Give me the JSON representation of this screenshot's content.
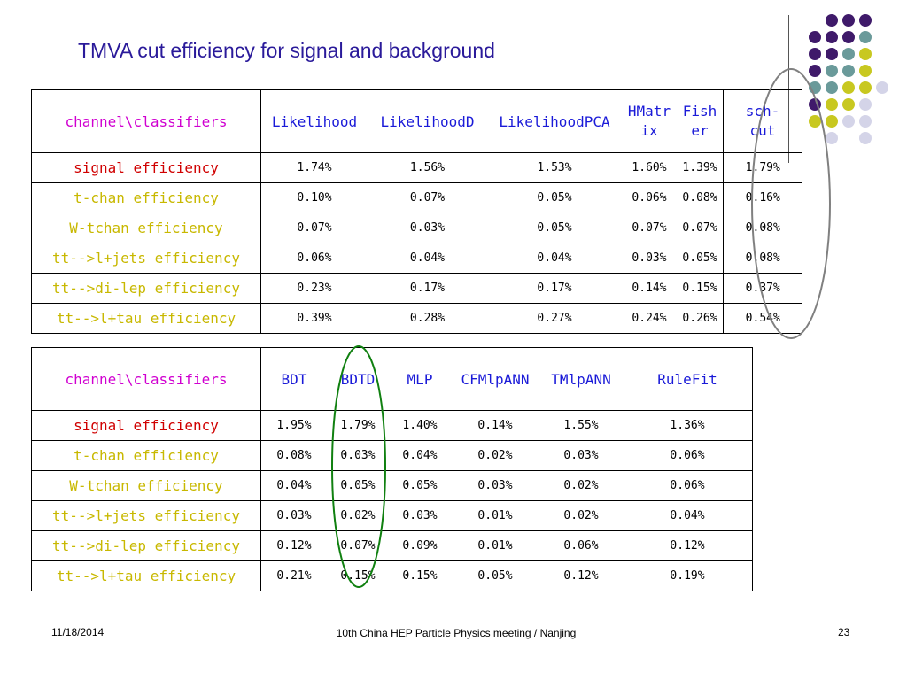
{
  "title": "TMVA cut efficiency for signal and background",
  "table1": {
    "corner": "channel\\classifiers",
    "headers": [
      "Likelihood",
      "LikelihoodD",
      "LikelihoodPCA",
      "HMatrix",
      "Fisher",
      "sch-cut"
    ],
    "rows": [
      {
        "label": "signal efficiency",
        "values": [
          "1.74%",
          "1.56%",
          "1.53%",
          "1.60%",
          "1.39%",
          "1.79%"
        ]
      },
      {
        "label": "t-chan efficiency",
        "values": [
          "0.10%",
          "0.07%",
          "0.05%",
          "0.06%",
          "0.08%",
          "0.16%"
        ]
      },
      {
        "label": "W-tchan efficiency",
        "values": [
          "0.07%",
          "0.03%",
          "0.05%",
          "0.07%",
          "0.07%",
          "0.08%"
        ]
      },
      {
        "label": "tt-->l+jets efficiency",
        "values": [
          "0.06%",
          "0.04%",
          "0.04%",
          "0.03%",
          "0.05%",
          "0.08%"
        ]
      },
      {
        "label": "tt-->di-lep efficiency",
        "values": [
          "0.23%",
          "0.17%",
          "0.17%",
          "0.14%",
          "0.15%",
          "0.37%"
        ]
      },
      {
        "label": "tt-->l+tau efficiency",
        "values": [
          "0.39%",
          "0.28%",
          "0.27%",
          "0.24%",
          "0.26%",
          "0.54%"
        ]
      }
    ]
  },
  "table2": {
    "corner": "channel\\classifiers",
    "headers": [
      "BDT",
      "BDTD",
      "MLP",
      "CFMlpANN",
      "TMlpANN",
      "RuleFit"
    ],
    "rows": [
      {
        "label": "signal efficiency",
        "values": [
          "1.95%",
          "1.79%",
          "1.40%",
          "0.14%",
          "1.55%",
          "1.36%"
        ]
      },
      {
        "label": "t-chan efficiency",
        "values": [
          "0.08%",
          "0.03%",
          "0.04%",
          "0.02%",
          "0.03%",
          "0.06%"
        ]
      },
      {
        "label": "W-tchan efficiency",
        "values": [
          "0.04%",
          "0.05%",
          "0.05%",
          "0.03%",
          "0.02%",
          "0.06%"
        ]
      },
      {
        "label": "tt-->l+jets efficiency",
        "values": [
          "0.03%",
          "0.02%",
          "0.03%",
          "0.01%",
          "0.02%",
          "0.04%"
        ]
      },
      {
        "label": "tt-->di-lep efficiency",
        "values": [
          "0.12%",
          "0.07%",
          "0.09%",
          "0.01%",
          "0.06%",
          "0.12%"
        ]
      },
      {
        "label": "tt-->l+tau efficiency",
        "values": [
          "0.21%",
          "0.15%",
          "0.15%",
          "0.05%",
          "0.12%",
          "0.19%"
        ]
      }
    ]
  },
  "footer": {
    "date": "11/18/2014",
    "meeting": "10th China HEP Particle Physics meeting / Nanjing",
    "page": "23"
  },
  "colors": {
    "title": "#2a1a9a",
    "header": "#1a1ad8",
    "corner": "#d000d0",
    "signal_row": "#d00000",
    "background_rows": "#c8b800",
    "ellipse_table1": "#808080",
    "ellipse_table2": "#108010",
    "dot_purple": "#3f1a6a",
    "dot_teal": "#6a9a9a",
    "dot_yellow": "#c8c820",
    "dot_lavender": "#d4d4e8"
  }
}
